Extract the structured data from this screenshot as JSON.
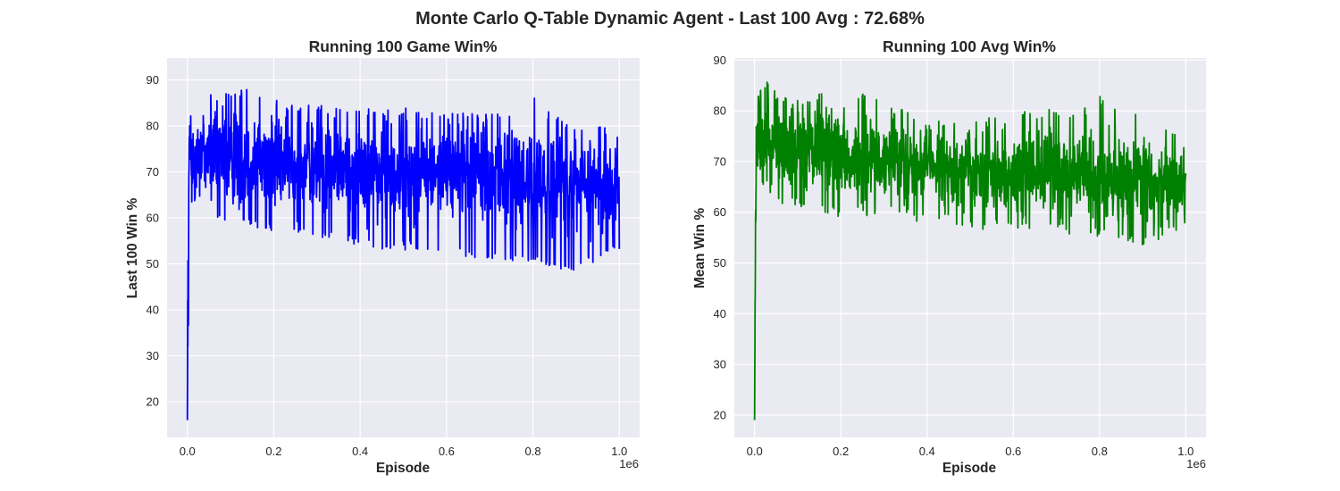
{
  "figure": {
    "suptitle": "Monte Carlo Q-Table Dynamic Agent -  Last 100 Avg : 72.68%"
  },
  "chart_data": [
    {
      "type": "line",
      "title": "Running 100 Game Win%",
      "xlabel": "Episode",
      "ylabel": "Last 100 Win %",
      "x_offset_text": "1e6",
      "xlim": [
        -0.047,
        1.047
      ],
      "ylim": [
        12.25,
        94.75
      ],
      "xticks": [
        0.0,
        0.2,
        0.4,
        0.6,
        0.8,
        1.0
      ],
      "xtick_labels": [
        "0.0",
        "0.2",
        "0.4",
        "0.6",
        "0.8",
        "1.0"
      ],
      "yticks": [
        20,
        30,
        40,
        50,
        60,
        70,
        80,
        90
      ],
      "ytick_labels": [
        "20",
        "30",
        "40",
        "50",
        "60",
        "70",
        "80",
        "90"
      ],
      "grid": true,
      "color": "#0000ff",
      "series": [
        {
          "x": [
            0.0,
            0.002,
            0.004,
            0.006,
            0.01,
            0.02,
            0.03,
            0.05,
            0.1,
            0.15,
            0.2,
            0.25,
            0.3,
            0.35,
            0.4,
            0.45,
            0.5,
            0.55,
            0.6,
            0.65,
            0.7,
            0.75,
            0.8,
            0.85,
            0.9,
            0.95,
            1.0
          ],
          "values": [
            16,
            50,
            72,
            76,
            74,
            73,
            75,
            74,
            73,
            73,
            72,
            72,
            71,
            71,
            70,
            70,
            70,
            70,
            70,
            70,
            69,
            69,
            68,
            68,
            67,
            67,
            67
          ],
          "band_high": [
            16,
            86,
            86,
            85,
            86,
            88,
            91,
            88,
            88,
            88,
            86,
            85,
            85,
            85,
            84,
            84,
            84,
            83,
            83,
            83,
            83,
            83,
            87,
            82,
            81,
            80,
            80
          ],
          "band_low": [
            16,
            28,
            60,
            62,
            62,
            62,
            60,
            59,
            59,
            58,
            57,
            56,
            55,
            55,
            54,
            53,
            53,
            53,
            52,
            51,
            51,
            50,
            50,
            49,
            48,
            51,
            53
          ]
        }
      ]
    },
    {
      "type": "line",
      "title": "Running 100 Avg Win%",
      "xlabel": "Episode",
      "ylabel": "Mean Win %",
      "x_offset_text": "1e6",
      "xlim": [
        -0.047,
        1.047
      ],
      "ylim": [
        15.6,
        90.4
      ],
      "xticks": [
        0.0,
        0.2,
        0.4,
        0.6,
        0.8,
        1.0
      ],
      "xtick_labels": [
        "0.0",
        "0.2",
        "0.4",
        "0.6",
        "0.8",
        "1.0"
      ],
      "yticks": [
        20,
        30,
        40,
        50,
        60,
        70,
        80,
        90
      ],
      "ytick_labels": [
        "20",
        "30",
        "40",
        "50",
        "60",
        "70",
        "80",
        "90"
      ],
      "grid": true,
      "color": "#008000",
      "series": [
        {
          "x": [
            0.0,
            0.002,
            0.004,
            0.006,
            0.01,
            0.02,
            0.03,
            0.05,
            0.1,
            0.15,
            0.2,
            0.25,
            0.3,
            0.35,
            0.4,
            0.45,
            0.5,
            0.55,
            0.6,
            0.65,
            0.7,
            0.75,
            0.8,
            0.85,
            0.9,
            0.95,
            1.0
          ],
          "values": [
            19,
            55,
            72,
            74,
            74,
            73,
            74,
            73,
            72,
            72,
            71,
            70,
            70,
            69,
            69,
            69,
            68,
            68,
            68,
            68,
            68,
            67,
            67,
            67,
            66,
            66,
            66
          ],
          "band_high": [
            19,
            80,
            84,
            84,
            84,
            85,
            87,
            84,
            83,
            84,
            81,
            84,
            82,
            80,
            79,
            78,
            78,
            79,
            80,
            80,
            81,
            80,
            83,
            81,
            80,
            78,
            75
          ],
          "band_low": [
            19,
            54,
            64,
            65,
            64,
            64,
            63,
            62,
            61,
            60,
            59,
            59,
            59,
            58,
            58,
            58,
            57,
            56,
            56,
            56,
            56,
            55,
            55,
            54,
            53,
            55,
            57
          ]
        }
      ]
    }
  ]
}
